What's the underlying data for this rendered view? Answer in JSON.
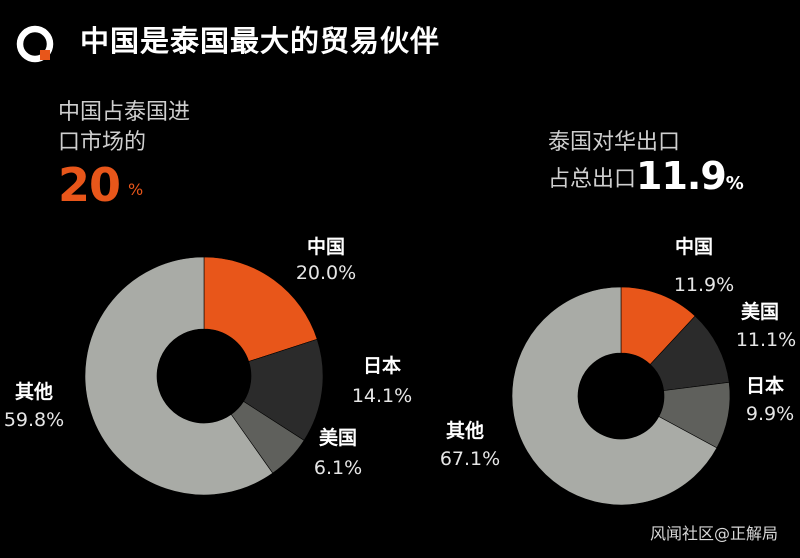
{
  "header": {
    "title": "中国是泰国最大的贸易伙伴"
  },
  "left_headline": {
    "line1": "中国占泰国进",
    "line2": "口市场的",
    "big_value": "20",
    "unit": "%"
  },
  "right_headline": {
    "line1": "泰国对华出口",
    "line2": "占总出口",
    "big_value": "11.9",
    "unit": "%"
  },
  "watermark": "风闻社区@正解局",
  "colors": {
    "accent": "#e8561a",
    "dark_slice": "#2b2b2b",
    "mid_slice": "#5f605c",
    "light_slice": "#a9aba6"
  },
  "chart_data": [
    {
      "type": "pie",
      "donut": true,
      "labels": [
        "中国",
        "日本",
        "美国",
        "其他"
      ],
      "values": [
        20.0,
        14.1,
        6.1,
        59.8
      ],
      "value_labels": [
        "20.0%",
        "14.1%",
        "6.1%",
        "59.8%"
      ],
      "colors": [
        "#e8561a",
        "#2b2b2b",
        "#5f605c",
        "#a9aba6"
      ]
    },
    {
      "type": "pie",
      "donut": true,
      "labels": [
        "中国",
        "美国",
        "日本",
        "其他"
      ],
      "values": [
        11.9,
        11.1,
        9.9,
        67.1
      ],
      "value_labels": [
        "11.9%",
        "11.1%",
        "9.9%",
        "67.1%"
      ],
      "colors": [
        "#e8561a",
        "#2b2b2b",
        "#5f605c",
        "#a9aba6"
      ]
    }
  ]
}
